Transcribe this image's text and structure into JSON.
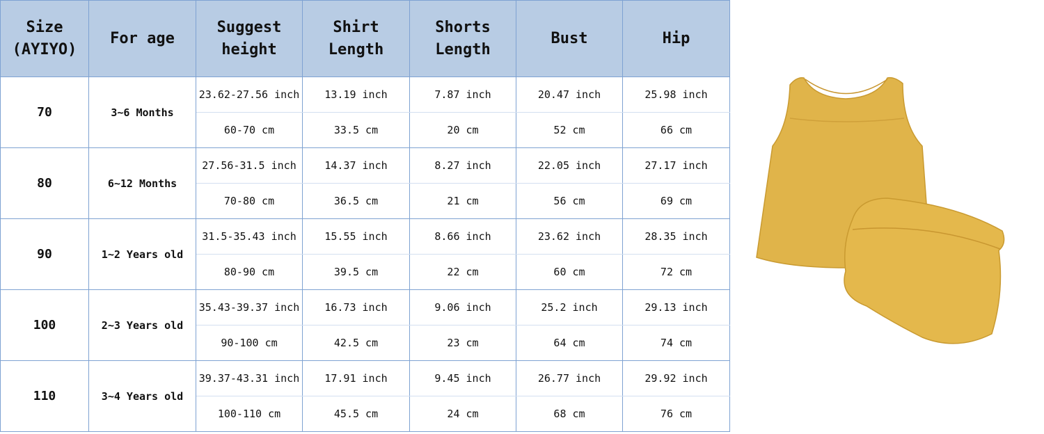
{
  "headers": [
    "Size\n(AYIYO)",
    "For age",
    "Suggest\nheight",
    "Shirt\nLength",
    "Shorts\nLength",
    "Bust",
    "Hip"
  ],
  "rows": [
    {
      "size": "70",
      "age": "3~6 Months",
      "inch": [
        "23.62-27.56 inch",
        "13.19 inch",
        "7.87 inch",
        "20.47 inch",
        "25.98 inch"
      ],
      "cm": [
        "60-70 cm",
        "33.5 cm",
        "20 cm",
        "52 cm",
        "66 cm"
      ]
    },
    {
      "size": "80",
      "age": "6~12 Months",
      "inch": [
        "27.56-31.5 inch",
        "14.37 inch",
        "8.27 inch",
        "22.05 inch",
        "27.17 inch"
      ],
      "cm": [
        "70-80 cm",
        "36.5 cm",
        "21 cm",
        "56 cm",
        "69 cm"
      ]
    },
    {
      "size": "90",
      "age": "1~2 Years old",
      "inch": [
        "31.5-35.43 inch",
        "15.55 inch",
        "8.66 inch",
        "23.62 inch",
        "28.35 inch"
      ],
      "cm": [
        "80-90 cm",
        "39.5 cm",
        "22 cm",
        "60 cm",
        "72 cm"
      ]
    },
    {
      "size": "100",
      "age": "2~3 Years old",
      "inch": [
        "35.43-39.37 inch",
        "16.73 inch",
        "9.06 inch",
        "25.2 inch",
        "29.13 inch"
      ],
      "cm": [
        "90-100 cm",
        "42.5 cm",
        "23 cm",
        "64 cm",
        "74 cm"
      ]
    },
    {
      "size": "110",
      "age": "3~4 Years old",
      "inch": [
        "39.37-43.31 inch",
        "17.91 inch",
        "9.45 inch",
        "26.77 inch",
        "29.92 inch"
      ],
      "cm": [
        "100-110 cm",
        "45.5 cm",
        "24 cm",
        "68 cm",
        "76 cm"
      ]
    }
  ],
  "colors": {
    "header_bg": "#b8cce4",
    "grid": "#7ea2d2",
    "garment": "#e0b44a"
  },
  "photo": {
    "subject": "yellow sleeveless top and bloomer shorts set"
  }
}
